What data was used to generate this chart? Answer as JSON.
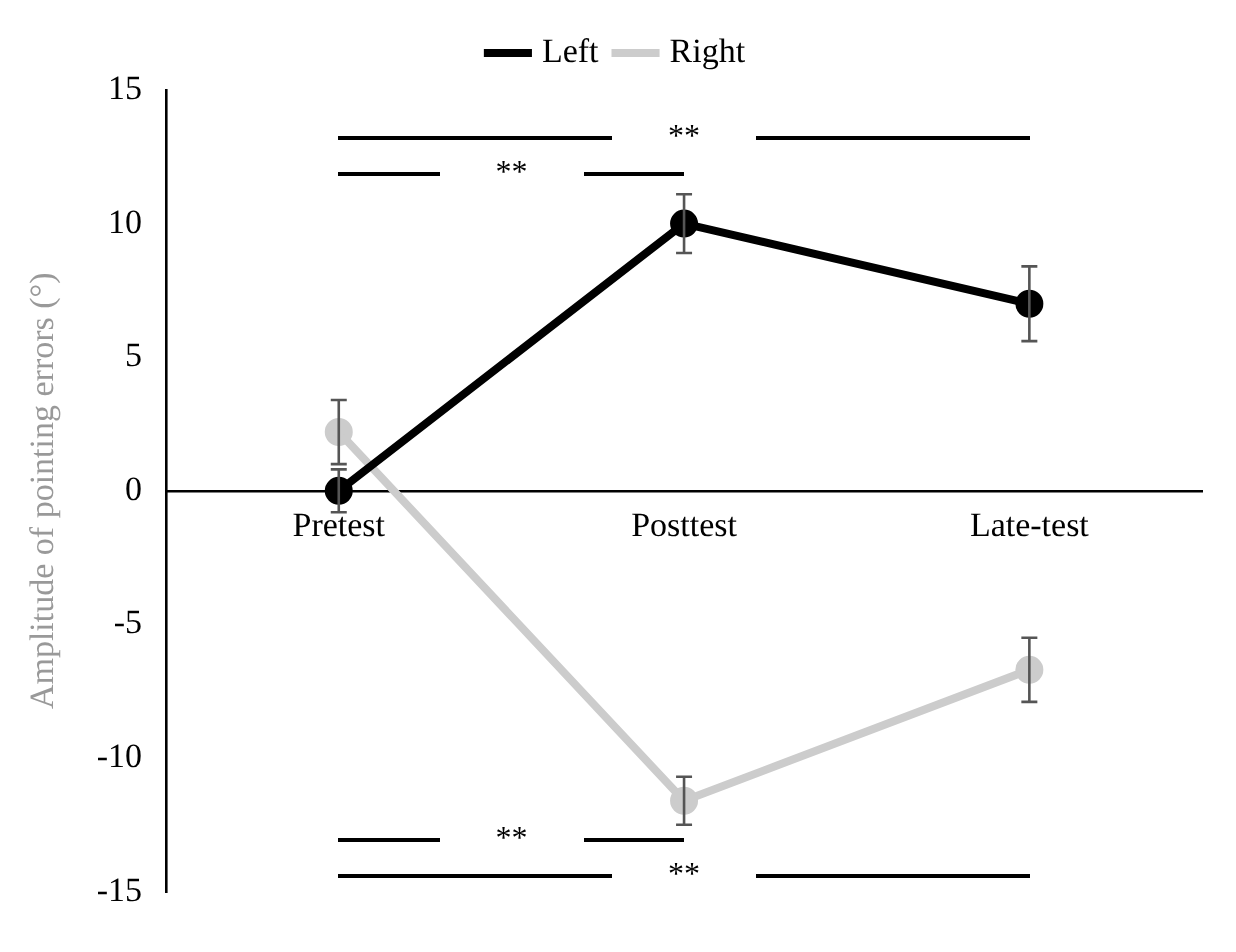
{
  "chart_data": {
    "type": "line",
    "ylabel": "Amplitude of pointing errors (°)",
    "categories": [
      "Pretest",
      "Posttest",
      "Late-test"
    ],
    "series": [
      {
        "name": "Left",
        "color": "#000000",
        "values": [
          0,
          10,
          7
        ],
        "errors": [
          0.8,
          1.1,
          1.4
        ]
      },
      {
        "name": "Right",
        "color": "#cccccc",
        "values": [
          2.2,
          -11.6,
          -6.7
        ],
        "errors": [
          1.2,
          0.9,
          1.2
        ]
      }
    ],
    "ylim": [
      -15,
      15
    ],
    "yticks": [
      15,
      10,
      5,
      0,
      -5,
      -10,
      -15
    ],
    "grid": false,
    "legend": "top",
    "marker": "circle",
    "line_style": "solid",
    "annotations": [
      "**",
      "**",
      "**",
      "**"
    ]
  }
}
